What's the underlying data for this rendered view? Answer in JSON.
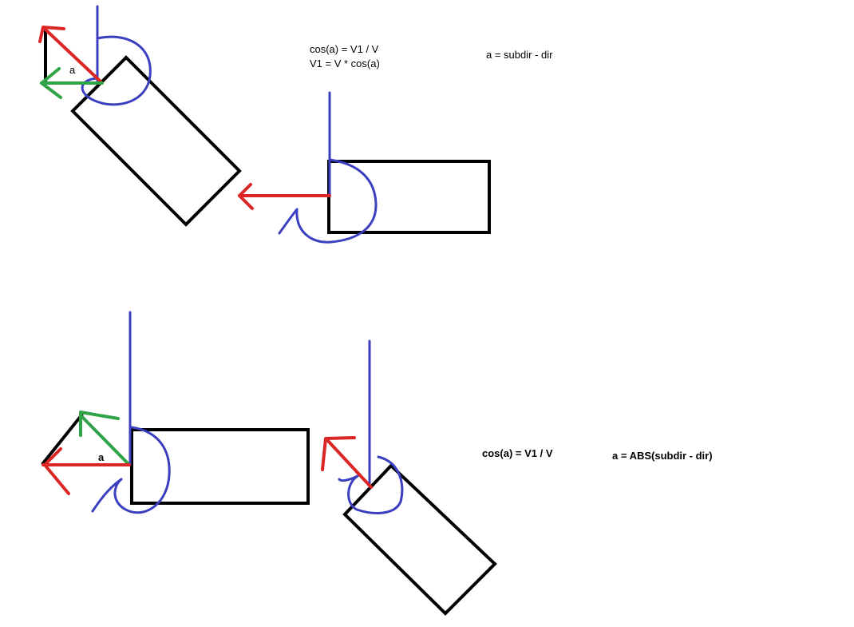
{
  "labels": {
    "angle_top": "a",
    "angle_bottom": "a",
    "formula_top_1": "cos(a) = V1 / V",
    "formula_top_2": "V1 = V * cos(a)",
    "formula_top_angle": "a = subdir - dir",
    "formula_bottom_1": "cos(a) = V1 / V",
    "formula_bottom_angle": "a = ABS(subdir - dir)"
  },
  "colors": {
    "background": "#ffffff",
    "box": "#000000",
    "vector_v": "#dc2626",
    "vector_v1": "#2fa346",
    "reference_axis": "#3b3fbf"
  }
}
